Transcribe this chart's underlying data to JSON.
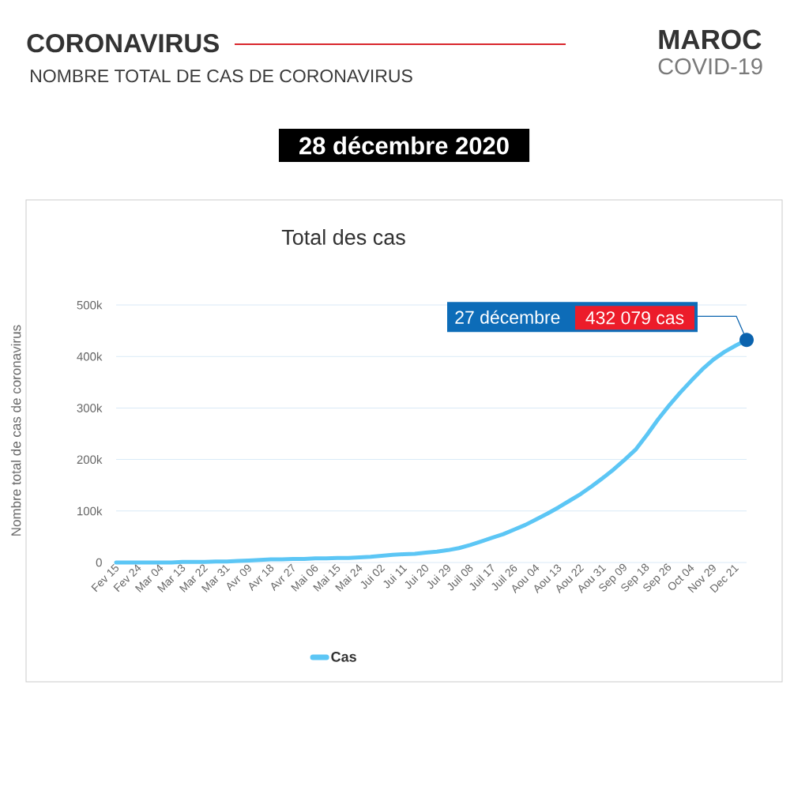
{
  "chart_data": {
    "type": "line",
    "title": "CORONAVIRUS",
    "subtitle": "NOMBRE TOTAL DE CAS DE CORONAVIRUS",
    "ylabel": "Nombre total de cas de coronavirus",
    "annotations": [
      "MAROC",
      "COVID-19",
      "28 décembre 2020",
      "Total des cas",
      "27 décembre"
    ],
    "categories": [
      "Fev 15",
      null,
      "Fev 24",
      null,
      "Mar 04",
      null,
      "Mar 13",
      null,
      "Mar 22",
      null,
      "Mar 31",
      null,
      "Avr 09",
      null,
      "Avr 18",
      null,
      "Avr 27",
      null,
      "Mai 06",
      null,
      "Mai 15",
      null,
      "Mai 24",
      null,
      "Jui 02",
      null,
      "Jui 11",
      null,
      "Jui 20",
      null,
      "Jui 29",
      null,
      "Juil 08",
      null,
      "Juil 17",
      null,
      "Juil 26",
      null,
      "Aou 04",
      null,
      "Aou 13",
      null,
      "Aou 22",
      null,
      "Aou 31",
      null,
      "Sep 09",
      null,
      "Sep 18",
      null,
      "Sep 26",
      null,
      "Oct 04",
      null,
      "Nov 29",
      null,
      "Dec 21",
      null
    ],
    "series": [
      {
        "name": "Cas",
        "color": "#5cc6f5",
        "values": [
          0,
          0,
          0,
          0,
          0,
          0,
          1000,
          1000,
          1000,
          2000,
          2000,
          3000,
          4000,
          5000,
          6000,
          6000,
          7000,
          7000,
          8000,
          8000,
          9000,
          9000,
          10000,
          11000,
          13000,
          15000,
          16000,
          17000,
          19000,
          21000,
          24000,
          28000,
          34000,
          41000,
          48000,
          55000,
          64000,
          73000,
          84000,
          95000,
          107000,
          120000,
          133000,
          148000,
          164000,
          181000,
          200000,
          220000,
          248000,
          278000,
          305000,
          330000,
          353000,
          375000,
          394000,
          409000,
          421000,
          432079
        ],
        "value_labels": [
          null,
          null,
          null,
          null,
          null,
          null,
          null,
          null,
          null,
          null,
          null,
          null,
          null,
          null,
          null,
          null,
          null,
          null,
          null,
          null,
          null,
          null,
          null,
          null,
          null,
          null,
          null,
          null,
          null,
          null,
          null,
          null,
          null,
          null,
          null,
          null,
          null,
          null,
          null,
          null,
          null,
          null,
          null,
          null,
          null,
          null,
          null,
          null,
          null,
          null,
          null,
          null,
          null,
          null,
          null,
          null,
          null,
          "432 079 cas"
        ]
      }
    ],
    "ylim": [
      0,
      500000
    ],
    "yticks": [
      0,
      {
        "value": 100000,
        "label": "100k"
      },
      {
        "value": 200000,
        "label": "200k"
      },
      {
        "value": 300000,
        "label": "300k"
      },
      {
        "value": 400000,
        "label": "400k"
      },
      {
        "value": 500000,
        "label": "500k"
      }
    ],
    "grid": "y",
    "legend": "bottom"
  }
}
